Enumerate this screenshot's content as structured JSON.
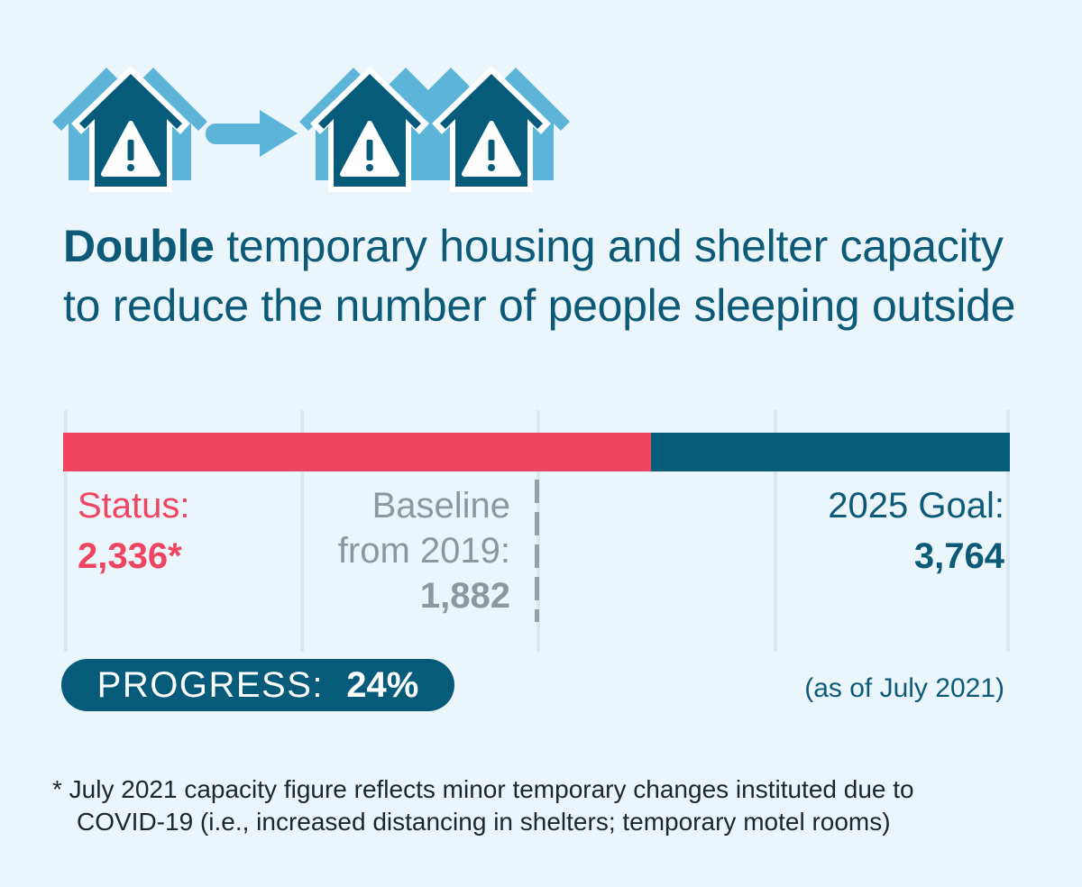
{
  "title": {
    "bold": "Double",
    "rest": " temporary housing and shelter capacity to reduce the number of people sleeping outside"
  },
  "chart_data": {
    "type": "bar",
    "status": {
      "label": "Status:",
      "value": 2336,
      "display": "2,336*"
    },
    "baseline": {
      "label_line1": "Baseline",
      "label_line2": "from 2019:",
      "value": 1882,
      "display": "1,882"
    },
    "goal": {
      "label": "2025 Goal:",
      "value": 3764,
      "display": "3,764"
    },
    "progress_fraction": 0.24
  },
  "progress": {
    "label": "PROGRESS:",
    "value": "24%"
  },
  "as_of": "(as of July 2021)",
  "footnote": {
    "line1": "* July 2021 capacity figure reflects minor temporary changes instituted due to",
    "line2": "COVID-19 (i.e., increased distancing in shelters; temporary motel rooms)"
  },
  "colors": {
    "status": "#ef4560",
    "goal": "#055b79",
    "baseline": "#8d979d",
    "background": "#eaf5fc",
    "icon_light": "#5db4d9"
  },
  "icons": [
    "house-warning-icon",
    "arrow-right-icon",
    "house-warning-icon",
    "house-warning-icon"
  ]
}
